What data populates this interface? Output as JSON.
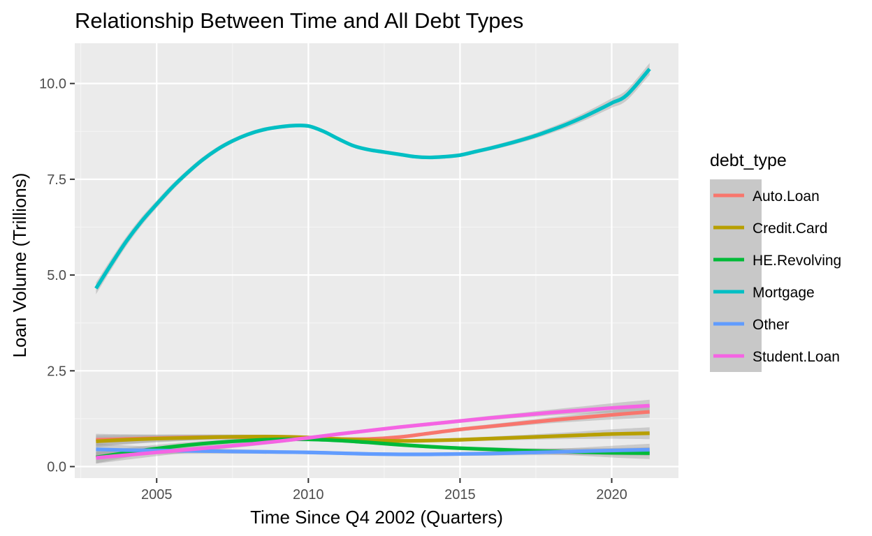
{
  "chart_data": {
    "type": "line",
    "title": "Relationship Between Time and All Debt Types",
    "xlabel": "Time Since Q4 2002 (Quarters)",
    "ylabel": "Loan Volume (Trillions)",
    "xlim": [
      2002.3,
      2022.2
    ],
    "ylim": [
      -0.3,
      11.05
    ],
    "x_ticks": [
      2005,
      2010,
      2015,
      2020
    ],
    "y_ticks": [
      0.0,
      2.5,
      5.0,
      7.5,
      10.0
    ],
    "x_tick_labels": [
      "2005",
      "2010",
      "2015",
      "2020"
    ],
    "y_tick_labels": [
      "0.0",
      "2.5",
      "5.0",
      "7.5",
      "10.0"
    ],
    "grid": true,
    "legend": {
      "title": "debt_type",
      "position": "right"
    },
    "series": [
      {
        "name": "Auto.Loan",
        "color": "#F8766D",
        "x": [
          2003,
          2004,
          2005,
          2006,
          2007,
          2008,
          2009,
          2010,
          2011,
          2012,
          2013,
          2014,
          2015,
          2016,
          2017,
          2018,
          2019,
          2020,
          2021.25
        ],
        "y": [
          0.7,
          0.72,
          0.74,
          0.76,
          0.77,
          0.77,
          0.76,
          0.74,
          0.72,
          0.72,
          0.77,
          0.87,
          0.97,
          1.05,
          1.13,
          1.21,
          1.28,
          1.35,
          1.43
        ]
      },
      {
        "name": "Credit.Card",
        "color": "#B79F00",
        "x": [
          2003,
          2004,
          2005,
          2006,
          2007,
          2008,
          2009,
          2010,
          2011,
          2012,
          2013,
          2014,
          2015,
          2016,
          2017,
          2018,
          2019,
          2020,
          2021.25
        ],
        "y": [
          0.66,
          0.7,
          0.73,
          0.75,
          0.77,
          0.78,
          0.78,
          0.76,
          0.72,
          0.69,
          0.67,
          0.68,
          0.7,
          0.73,
          0.76,
          0.79,
          0.82,
          0.85,
          0.87
        ]
      },
      {
        "name": "HE.Revolving",
        "color": "#00BA38",
        "x": [
          2003,
          2004,
          2005,
          2006,
          2007,
          2008,
          2009,
          2010,
          2011,
          2012,
          2013,
          2014,
          2015,
          2016,
          2017,
          2018,
          2019,
          2020,
          2021.25
        ],
        "y": [
          0.24,
          0.36,
          0.47,
          0.56,
          0.63,
          0.68,
          0.71,
          0.71,
          0.68,
          0.63,
          0.57,
          0.52,
          0.48,
          0.45,
          0.42,
          0.4,
          0.38,
          0.36,
          0.35
        ]
      },
      {
        "name": "Mortgage",
        "color": "#00BFC4",
        "x": [
          2003,
          2003.5,
          2004,
          2004.5,
          2005,
          2005.5,
          2006,
          2006.5,
          2007,
          2007.5,
          2008,
          2008.5,
          2009,
          2009.5,
          2010,
          2010.5,
          2011,
          2011.5,
          2012,
          2012.5,
          2013,
          2013.5,
          2014,
          2014.5,
          2015,
          2015.5,
          2016,
          2016.5,
          2017,
          2017.5,
          2018,
          2018.5,
          2019,
          2019.5,
          2020,
          2020.5,
          2021.25
        ],
        "y": [
          4.65,
          5.28,
          5.88,
          6.4,
          6.85,
          7.28,
          7.66,
          8.0,
          8.28,
          8.5,
          8.67,
          8.79,
          8.86,
          8.9,
          8.89,
          8.75,
          8.55,
          8.37,
          8.27,
          8.21,
          8.15,
          8.09,
          8.07,
          8.09,
          8.13,
          8.22,
          8.31,
          8.41,
          8.52,
          8.64,
          8.78,
          8.93,
          9.1,
          9.29,
          9.49,
          9.7,
          10.38
        ]
      },
      {
        "name": "Other",
        "color": "#619CFF",
        "x": [
          2003,
          2004,
          2005,
          2006,
          2007,
          2008,
          2009,
          2010,
          2011,
          2012,
          2013,
          2014,
          2015,
          2016,
          2017,
          2018,
          2019,
          2020,
          2021.25
        ],
        "y": [
          0.45,
          0.43,
          0.42,
          0.41,
          0.4,
          0.39,
          0.38,
          0.37,
          0.35,
          0.33,
          0.32,
          0.32,
          0.33,
          0.34,
          0.36,
          0.38,
          0.4,
          0.42,
          0.44
        ]
      },
      {
        "name": "Student.Loan",
        "color": "#F564E3",
        "x": [
          2003,
          2004,
          2005,
          2006,
          2007,
          2008,
          2009,
          2010,
          2011,
          2012,
          2013,
          2014,
          2015,
          2016,
          2017,
          2018,
          2019,
          2020,
          2021.25
        ],
        "y": [
          0.23,
          0.3,
          0.37,
          0.44,
          0.51,
          0.58,
          0.66,
          0.75,
          0.85,
          0.94,
          1.03,
          1.11,
          1.19,
          1.27,
          1.34,
          1.41,
          1.47,
          1.53,
          1.59
        ]
      }
    ]
  }
}
